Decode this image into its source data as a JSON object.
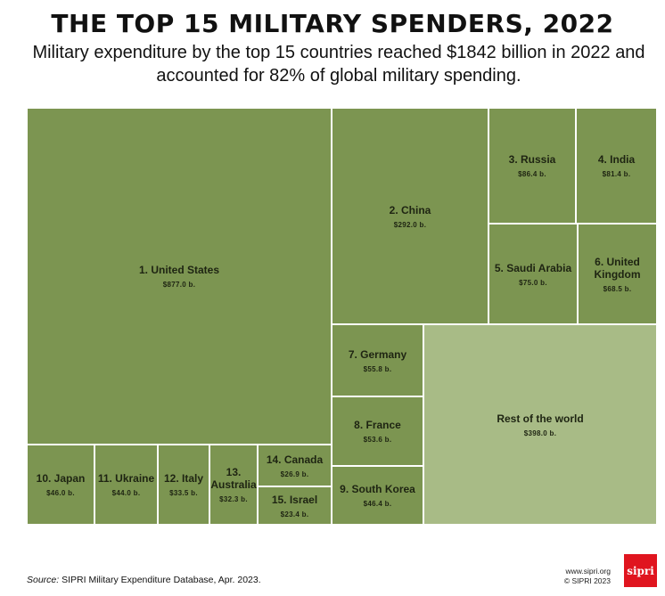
{
  "header": {
    "title": "THE TOP 15 MILITARY SPENDERS, 2022",
    "subtitle": "Military expenditure by the top 15 countries reached $1842 billion in 2022 and accounted for 82% of global military spending."
  },
  "colors": {
    "country": "#7c9551",
    "rest_of_world": "#a8bb86",
    "border": "#ffffff",
    "logo_bg": "#e0151f"
  },
  "chart_data": {
    "type": "treemap",
    "unit": "billion US$",
    "items": [
      {
        "label": "1. United States",
        "value": 877.0,
        "value_label": "$877.0 b.",
        "group": "country"
      },
      {
        "label": "2. China",
        "value": 292.0,
        "value_label": "$292.0 b.",
        "group": "country"
      },
      {
        "label": "3. Russia",
        "value": 86.4,
        "value_label": "$86.4 b.",
        "group": "country"
      },
      {
        "label": "4. India",
        "value": 81.4,
        "value_label": "$81.4 b.",
        "group": "country"
      },
      {
        "label": "5. Saudi Arabia",
        "value": 75.0,
        "value_label": "$75.0 b.",
        "group": "country"
      },
      {
        "label": "6. United Kingdom",
        "value": 68.5,
        "value_label": "$68.5 b.",
        "group": "country"
      },
      {
        "label": "7. Germany",
        "value": 55.8,
        "value_label": "$55.8 b.",
        "group": "country"
      },
      {
        "label": "8. France",
        "value": 53.6,
        "value_label": "$53.6 b.",
        "group": "country"
      },
      {
        "label": "9. South Korea",
        "value": 46.4,
        "value_label": "$46.4 b.",
        "group": "country"
      },
      {
        "label": "10. Japan",
        "value": 46.0,
        "value_label": "$46.0 b.",
        "group": "country"
      },
      {
        "label": "11. Ukraine",
        "value": 44.0,
        "value_label": "$44.0 b.",
        "group": "country"
      },
      {
        "label": "12. Italy",
        "value": 33.5,
        "value_label": "$33.5 b.",
        "group": "country"
      },
      {
        "label": "13. Australia",
        "value": 32.3,
        "value_label": "$32.3 b.",
        "group": "country"
      },
      {
        "label": "14. Canada",
        "value": 26.9,
        "value_label": "$26.9 b.",
        "group": "country"
      },
      {
        "label": "15. Israel",
        "value": 23.4,
        "value_label": "$23.4 b.",
        "group": "country"
      },
      {
        "label": "Rest of the world",
        "value": 398.0,
        "value_label": "$398.0 b.",
        "group": "rest"
      }
    ]
  },
  "footer": {
    "source_prefix": "Source:",
    "source_text": " SIPRI Military Expenditure Database, Apr. 2023.",
    "website": "www.sipri.org",
    "copyright": "© SIPRI 2023",
    "logo_text": "sipri"
  }
}
